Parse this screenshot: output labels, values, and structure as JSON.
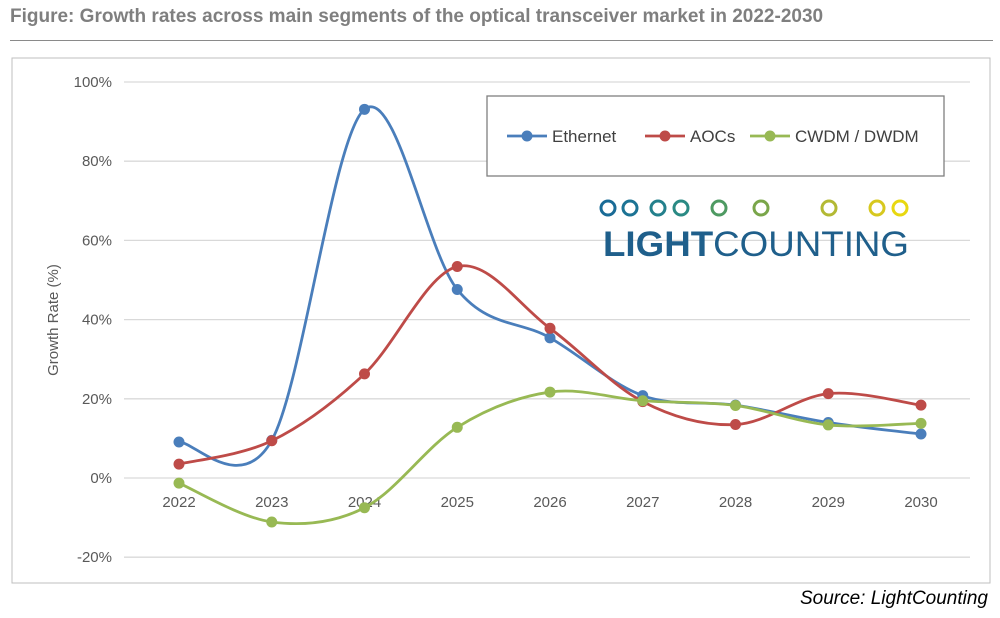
{
  "title": "Figure: Growth rates across main segments of the optical transceiver market in 2022-2030",
  "source": "Source: LightCounting",
  "logo": {
    "text_bold": "LIGHT",
    "text_regular": "COUNTING"
  },
  "chart_data": {
    "type": "line",
    "title": "",
    "xlabel": "",
    "ylabel": "Growth Rate (%)",
    "ylim": [
      -20,
      100
    ],
    "yticks": [
      "-20%",
      "0%",
      "20%",
      "40%",
      "60%",
      "80%",
      "100%"
    ],
    "yticks_values": [
      -20,
      0,
      20,
      40,
      60,
      80,
      100
    ],
    "categories": [
      "2022",
      "2023",
      "2024",
      "2025",
      "2026",
      "2027",
      "2028",
      "2029",
      "2030"
    ],
    "grid": true,
    "smooth": true,
    "legend": "top-right",
    "series": [
      {
        "name": "Ethernet",
        "color": "#4a7ebb",
        "values": [
          9.1,
          9.5,
          93.1,
          47.6,
          35.4,
          20.8,
          18.4,
          14.0,
          11.1
        ]
      },
      {
        "name": "AOCs",
        "color": "#be4b48",
        "values": [
          3.5,
          9.4,
          26.3,
          53.4,
          37.8,
          19.3,
          13.5,
          21.3,
          18.4
        ]
      },
      {
        "name": "CWDM / DWDM",
        "color": "#98b954",
        "values": [
          -1.3,
          -11.1,
          -7.5,
          12.8,
          21.7,
          19.5,
          18.3,
          13.4,
          13.8
        ]
      }
    ]
  }
}
